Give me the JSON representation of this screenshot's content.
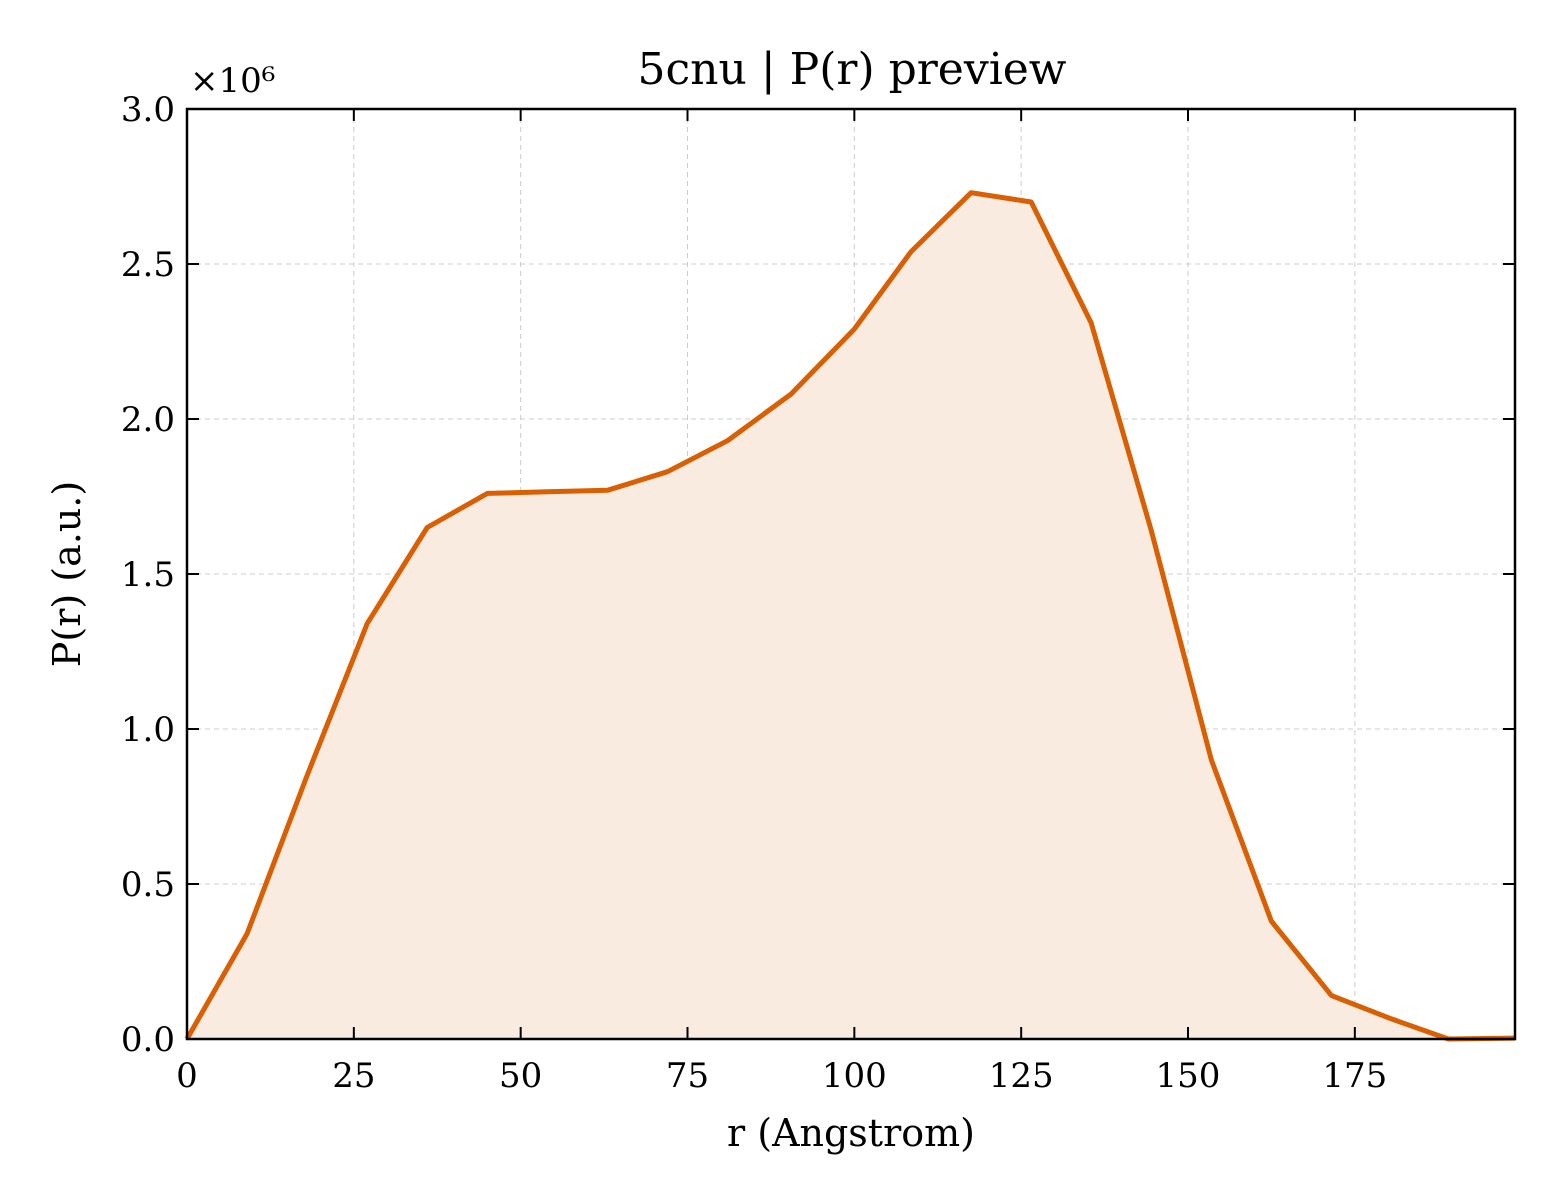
{
  "chart_data": {
    "type": "area",
    "title": "5cnu | P(r) preview",
    "xlabel": "r (Angstrom)",
    "ylabel": "P(r) (a.u.)",
    "y_scale_label": "×10⁶",
    "y_multiplier": 1000000,
    "xlim": [
      0,
      199
    ],
    "ylim": [
      0,
      3000000
    ],
    "xticks": [
      0,
      25,
      50,
      75,
      100,
      125,
      150,
      175
    ],
    "xtick_labels": [
      "0",
      "25",
      "50",
      "75",
      "100",
      "125",
      "150",
      "175"
    ],
    "yticks": [
      0,
      500000,
      1000000,
      1500000,
      2000000,
      2500000,
      3000000
    ],
    "ytick_labels": [
      "0.0",
      "0.5",
      "1.0",
      "1.5",
      "2.0",
      "2.5",
      "3.0"
    ],
    "grid": true,
    "colors": {
      "line": "#d95f02",
      "fill": "#f9ebe0"
    },
    "series": [
      {
        "x": [
          0,
          9,
          18,
          27,
          36,
          45,
          54,
          63,
          72,
          81,
          90.5,
          100,
          108.5,
          117.5,
          126.5,
          135.5,
          144.5,
          153.5,
          162.5,
          171.5,
          180.5,
          189,
          199
        ],
        "y": [
          0,
          340000,
          850000,
          1340000,
          1650000,
          1760000,
          1765000,
          1770000,
          1830000,
          1930000,
          2080000,
          2290000,
          2540000,
          2730000,
          2700000,
          2310000,
          1640000,
          900000,
          380000,
          140000,
          65000,
          0,
          3000
        ]
      }
    ]
  }
}
